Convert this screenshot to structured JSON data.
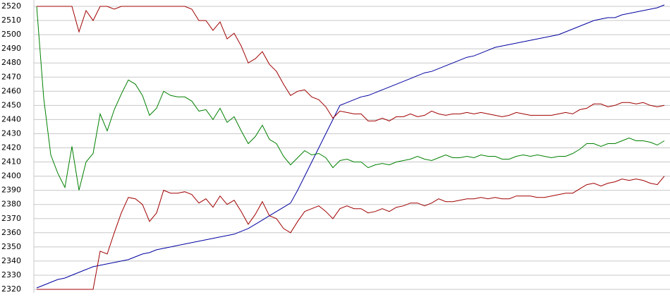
{
  "chart_data": {
    "type": "line",
    "categories": [
      null,
      null,
      null,
      null,
      null,
      null,
      null,
      null,
      null,
      null,
      null,
      null,
      null,
      null,
      null,
      null,
      null,
      null,
      null,
      null,
      null,
      null,
      null,
      null,
      null,
      null,
      null,
      null,
      null,
      null,
      null,
      null,
      null,
      null,
      null,
      null,
      null,
      null,
      null,
      null,
      null,
      null,
      null,
      null,
      null,
      null,
      null,
      null,
      null,
      null,
      null,
      null,
      null,
      null,
      null,
      null,
      null,
      null,
      null,
      null,
      null,
      null,
      null,
      null,
      null,
      null,
      null,
      null,
      null,
      null,
      null,
      null,
      null,
      null,
      null,
      null,
      null,
      null,
      null,
      null,
      null,
      null,
      null,
      null,
      null,
      null,
      null,
      null,
      null,
      null
    ],
    "series": [
      {
        "color": "#0000a0",
        "values": [
          2321,
          2323,
          2325,
          2327,
          2328,
          2330,
          2332,
          2334,
          2336,
          2337,
          2338,
          2339,
          2340,
          2341,
          2343,
          2345,
          2346,
          2348,
          2349,
          2350,
          2351,
          2352,
          2353,
          2354,
          2355,
          2356,
          2357,
          2358,
          2359,
          2361,
          2363,
          2366,
          2369,
          2372,
          2375,
          2378,
          2381,
          2390,
          2400,
          2410,
          2420,
          2430,
          2440,
          2450,
          2452,
          2454,
          2456,
          2457,
          2459,
          2461,
          2463,
          2465,
          2467,
          2469,
          2471,
          2473,
          2474,
          2476,
          2478,
          2480,
          2482,
          2484,
          2485,
          2487,
          2489,
          2491,
          2492,
          2493,
          2494,
          2495,
          2496,
          2497,
          2498,
          2499,
          2500,
          2502,
          2504,
          2506,
          2508,
          2510,
          2511,
          2512,
          2512,
          2514,
          2515,
          2516,
          2517,
          2518,
          2519,
          2521
        ]
      },
      {
        "color": "#008000",
        "values": [
          2520,
          2455,
          2415,
          2402,
          2392,
          2421,
          2390,
          2410,
          2416,
          2444,
          2432,
          2447,
          2458,
          2468,
          2465,
          2457,
          2443,
          2448,
          2460,
          2457,
          2456,
          2456,
          2453,
          2446,
          2447,
          2440,
          2448,
          2438,
          2442,
          2432,
          2423,
          2428,
          2436,
          2426,
          2423,
          2414,
          2408,
          2413,
          2418,
          2415,
          2416,
          2413,
          2406,
          2411,
          2412,
          2410,
          2410,
          2406,
          2408,
          2409,
          2408,
          2410,
          2411,
          2412,
          2414,
          2412,
          2411,
          2413,
          2415,
          2413,
          2413,
          2414,
          2413,
          2415,
          2414,
          2414,
          2412,
          2412,
          2414,
          2415,
          2414,
          2415,
          2414,
          2413,
          2414,
          2414,
          2416,
          2419,
          2423,
          2423,
          2421,
          2423,
          2423,
          2425,
          2427,
          2425,
          2425,
          2424,
          2422,
          2425
        ]
      },
      {
        "color": "#a00000",
        "values": [
          2520,
          2520,
          2520,
          2520,
          2520,
          2520,
          2502,
          2517,
          2510,
          2520,
          2520,
          2518,
          2520,
          2520,
          2520,
          2520,
          2520,
          2520,
          2520,
          2520,
          2520,
          2520,
          2518,
          2510,
          2510,
          2503,
          2509,
          2497,
          2501,
          2492,
          2480,
          2483,
          2488,
          2479,
          2474,
          2465,
          2457,
          2460,
          2461,
          2456,
          2454,
          2449,
          2441,
          2446,
          2445,
          2444,
          2444,
          2439,
          2439,
          2441,
          2439,
          2442,
          2442,
          2444,
          2442,
          2443,
          2446,
          2444,
          2443,
          2444,
          2444,
          2445,
          2444,
          2445,
          2444,
          2443,
          2442,
          2443,
          2445,
          2444,
          2443,
          2443,
          2443,
          2443,
          2444,
          2445,
          2444,
          2447,
          2448,
          2451,
          2451,
          2449,
          2450,
          2452,
          2452,
          2451,
          2452,
          2450,
          2449,
          2450
        ]
      },
      {
        "color": "#a00000",
        "values": [
          2320,
          2320,
          2320,
          2320,
          2320,
          2320,
          2320,
          2320,
          2320,
          2347,
          2345,
          2360,
          2374,
          2385,
          2384,
          2380,
          2368,
          2374,
          2390,
          2388,
          2388,
          2389,
          2387,
          2381,
          2384,
          2378,
          2386,
          2380,
          2383,
          2375,
          2366,
          2373,
          2382,
          2372,
          2370,
          2363,
          2360,
          2368,
          2375,
          2377,
          2379,
          2375,
          2370,
          2377,
          2379,
          2377,
          2377,
          2374,
          2375,
          2377,
          2375,
          2378,
          2379,
          2381,
          2381,
          2379,
          2381,
          2384,
          2382,
          2382,
          2383,
          2384,
          2384,
          2385,
          2384,
          2385,
          2384,
          2384,
          2386,
          2386,
          2386,
          2385,
          2385,
          2386,
          2387,
          2388,
          2388,
          2391,
          2394,
          2395,
          2393,
          2395,
          2396,
          2398,
          2397,
          2398,
          2397,
          2395,
          2394,
          2400
        ]
      }
    ],
    "ylim": [
      2320,
      2520
    ],
    "yticks": [
      2320,
      2330,
      2340,
      2350,
      2360,
      2370,
      2380,
      2390,
      2400,
      2410,
      2420,
      2430,
      2440,
      2450,
      2460,
      2470,
      2480,
      2490,
      2500,
      2510,
      2520
    ],
    "grid": true
  }
}
